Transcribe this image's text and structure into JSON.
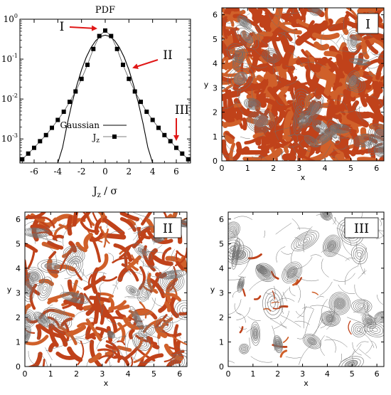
{
  "colors": {
    "field_fill": "#c0421a",
    "field_fill_light": "#d0602a",
    "contour": "#6f6f6f",
    "arrow": "#e01818",
    "axis": "#000000"
  },
  "chart_data": [
    {
      "type": "line",
      "title": "PDF",
      "xlabel": "J_z / σ",
      "xlabel_main": "J",
      "xlabel_sub": "z",
      "xlabel_rest": " / σ",
      "ylabel": "",
      "yscale": "log",
      "xlim": [
        -7.2,
        7.2
      ],
      "ylim": [
        0.00025,
        1.0
      ],
      "xticks": [
        "-6",
        "-4",
        "-2",
        "0",
        "2",
        "4",
        "6"
      ],
      "yticks": [
        {
          "base": "10",
          "exp": "0",
          "value": 1.0
        },
        {
          "base": "10",
          "exp": "-1",
          "value": 0.1
        },
        {
          "base": "10",
          "exp": "-2",
          "value": 0.01
        },
        {
          "base": "10",
          "exp": "-3",
          "value": 0.001
        }
      ],
      "legend_position": "center-right",
      "series": [
        {
          "name": "Gaussian",
          "marker": "none",
          "x": [
            -4.0,
            -3.6,
            -3.2,
            -2.8,
            -2.4,
            -2.0,
            -1.6,
            -1.2,
            -0.8,
            -0.4,
            0.0,
            0.4,
            0.8,
            1.2,
            1.6,
            2.0,
            2.4,
            2.8,
            3.2,
            3.6,
            4.0
          ],
          "y": [
            0.00013,
            0.00061,
            0.0024,
            0.0079,
            0.022,
            0.054,
            0.111,
            0.194,
            0.29,
            0.368,
            0.399,
            0.368,
            0.29,
            0.194,
            0.111,
            0.054,
            0.022,
            0.0079,
            0.0024,
            0.00061,
            0.00013
          ]
        },
        {
          "name": "J",
          "name_sub": "z",
          "marker": "square",
          "x": [
            -7.0,
            -6.5,
            -6.0,
            -5.5,
            -5.0,
            -4.5,
            -4.0,
            -3.5,
            -3.0,
            -2.5,
            -2.0,
            -1.5,
            -1.0,
            -0.5,
            0.0,
            0.5,
            1.0,
            1.5,
            2.0,
            2.5,
            3.0,
            3.5,
            4.0,
            4.5,
            5.0,
            5.5,
            6.0,
            6.5,
            7.0
          ],
          "y": [
            0.00031,
            0.00043,
            0.0006,
            0.00088,
            0.00125,
            0.0019,
            0.003,
            0.0048,
            0.0085,
            0.0155,
            0.032,
            0.072,
            0.18,
            0.38,
            0.52,
            0.38,
            0.18,
            0.072,
            0.032,
            0.0155,
            0.0085,
            0.0048,
            0.003,
            0.0019,
            0.00125,
            0.00088,
            0.0006,
            0.00043,
            0.00031
          ]
        }
      ],
      "annotations": [
        {
          "label": "I",
          "points_to": [
            0.0,
            0.52
          ]
        },
        {
          "label": "II",
          "points_to": [
            1.8,
            0.14
          ]
        },
        {
          "label": "III",
          "points_to": [
            6.25,
            0.0007
          ]
        }
      ]
    },
    {
      "type": "heatmap",
      "panel_label": "I",
      "xlabel": "x",
      "ylabel": "y",
      "xlim": [
        0,
        6.283
      ],
      "ylim": [
        0,
        6.283
      ],
      "xticks": [
        "0",
        "1",
        "2",
        "3",
        "4",
        "5",
        "6"
      ],
      "yticks": [
        "0",
        "1",
        "2",
        "3",
        "4",
        "5",
        "6"
      ],
      "fill_level": "high"
    },
    {
      "type": "heatmap",
      "panel_label": "II",
      "xlabel": "x",
      "ylabel": "y",
      "xlim": [
        0,
        6.283
      ],
      "ylim": [
        0,
        6.283
      ],
      "xticks": [
        "0",
        "1",
        "2",
        "3",
        "4",
        "5",
        "6"
      ],
      "yticks": [
        "0",
        "1",
        "2",
        "3",
        "4",
        "5",
        "6"
      ],
      "fill_level": "medium"
    },
    {
      "type": "heatmap",
      "panel_label": "III",
      "xlabel": "x",
      "ylabel": "y",
      "xlim": [
        0,
        6.283
      ],
      "ylim": [
        0,
        6.283
      ],
      "xticks": [
        "0",
        "1",
        "2",
        "3",
        "4",
        "5",
        "6"
      ],
      "yticks": [
        "0",
        "1",
        "2",
        "3",
        "4",
        "5",
        "6"
      ],
      "fill_level": "sparse"
    }
  ]
}
